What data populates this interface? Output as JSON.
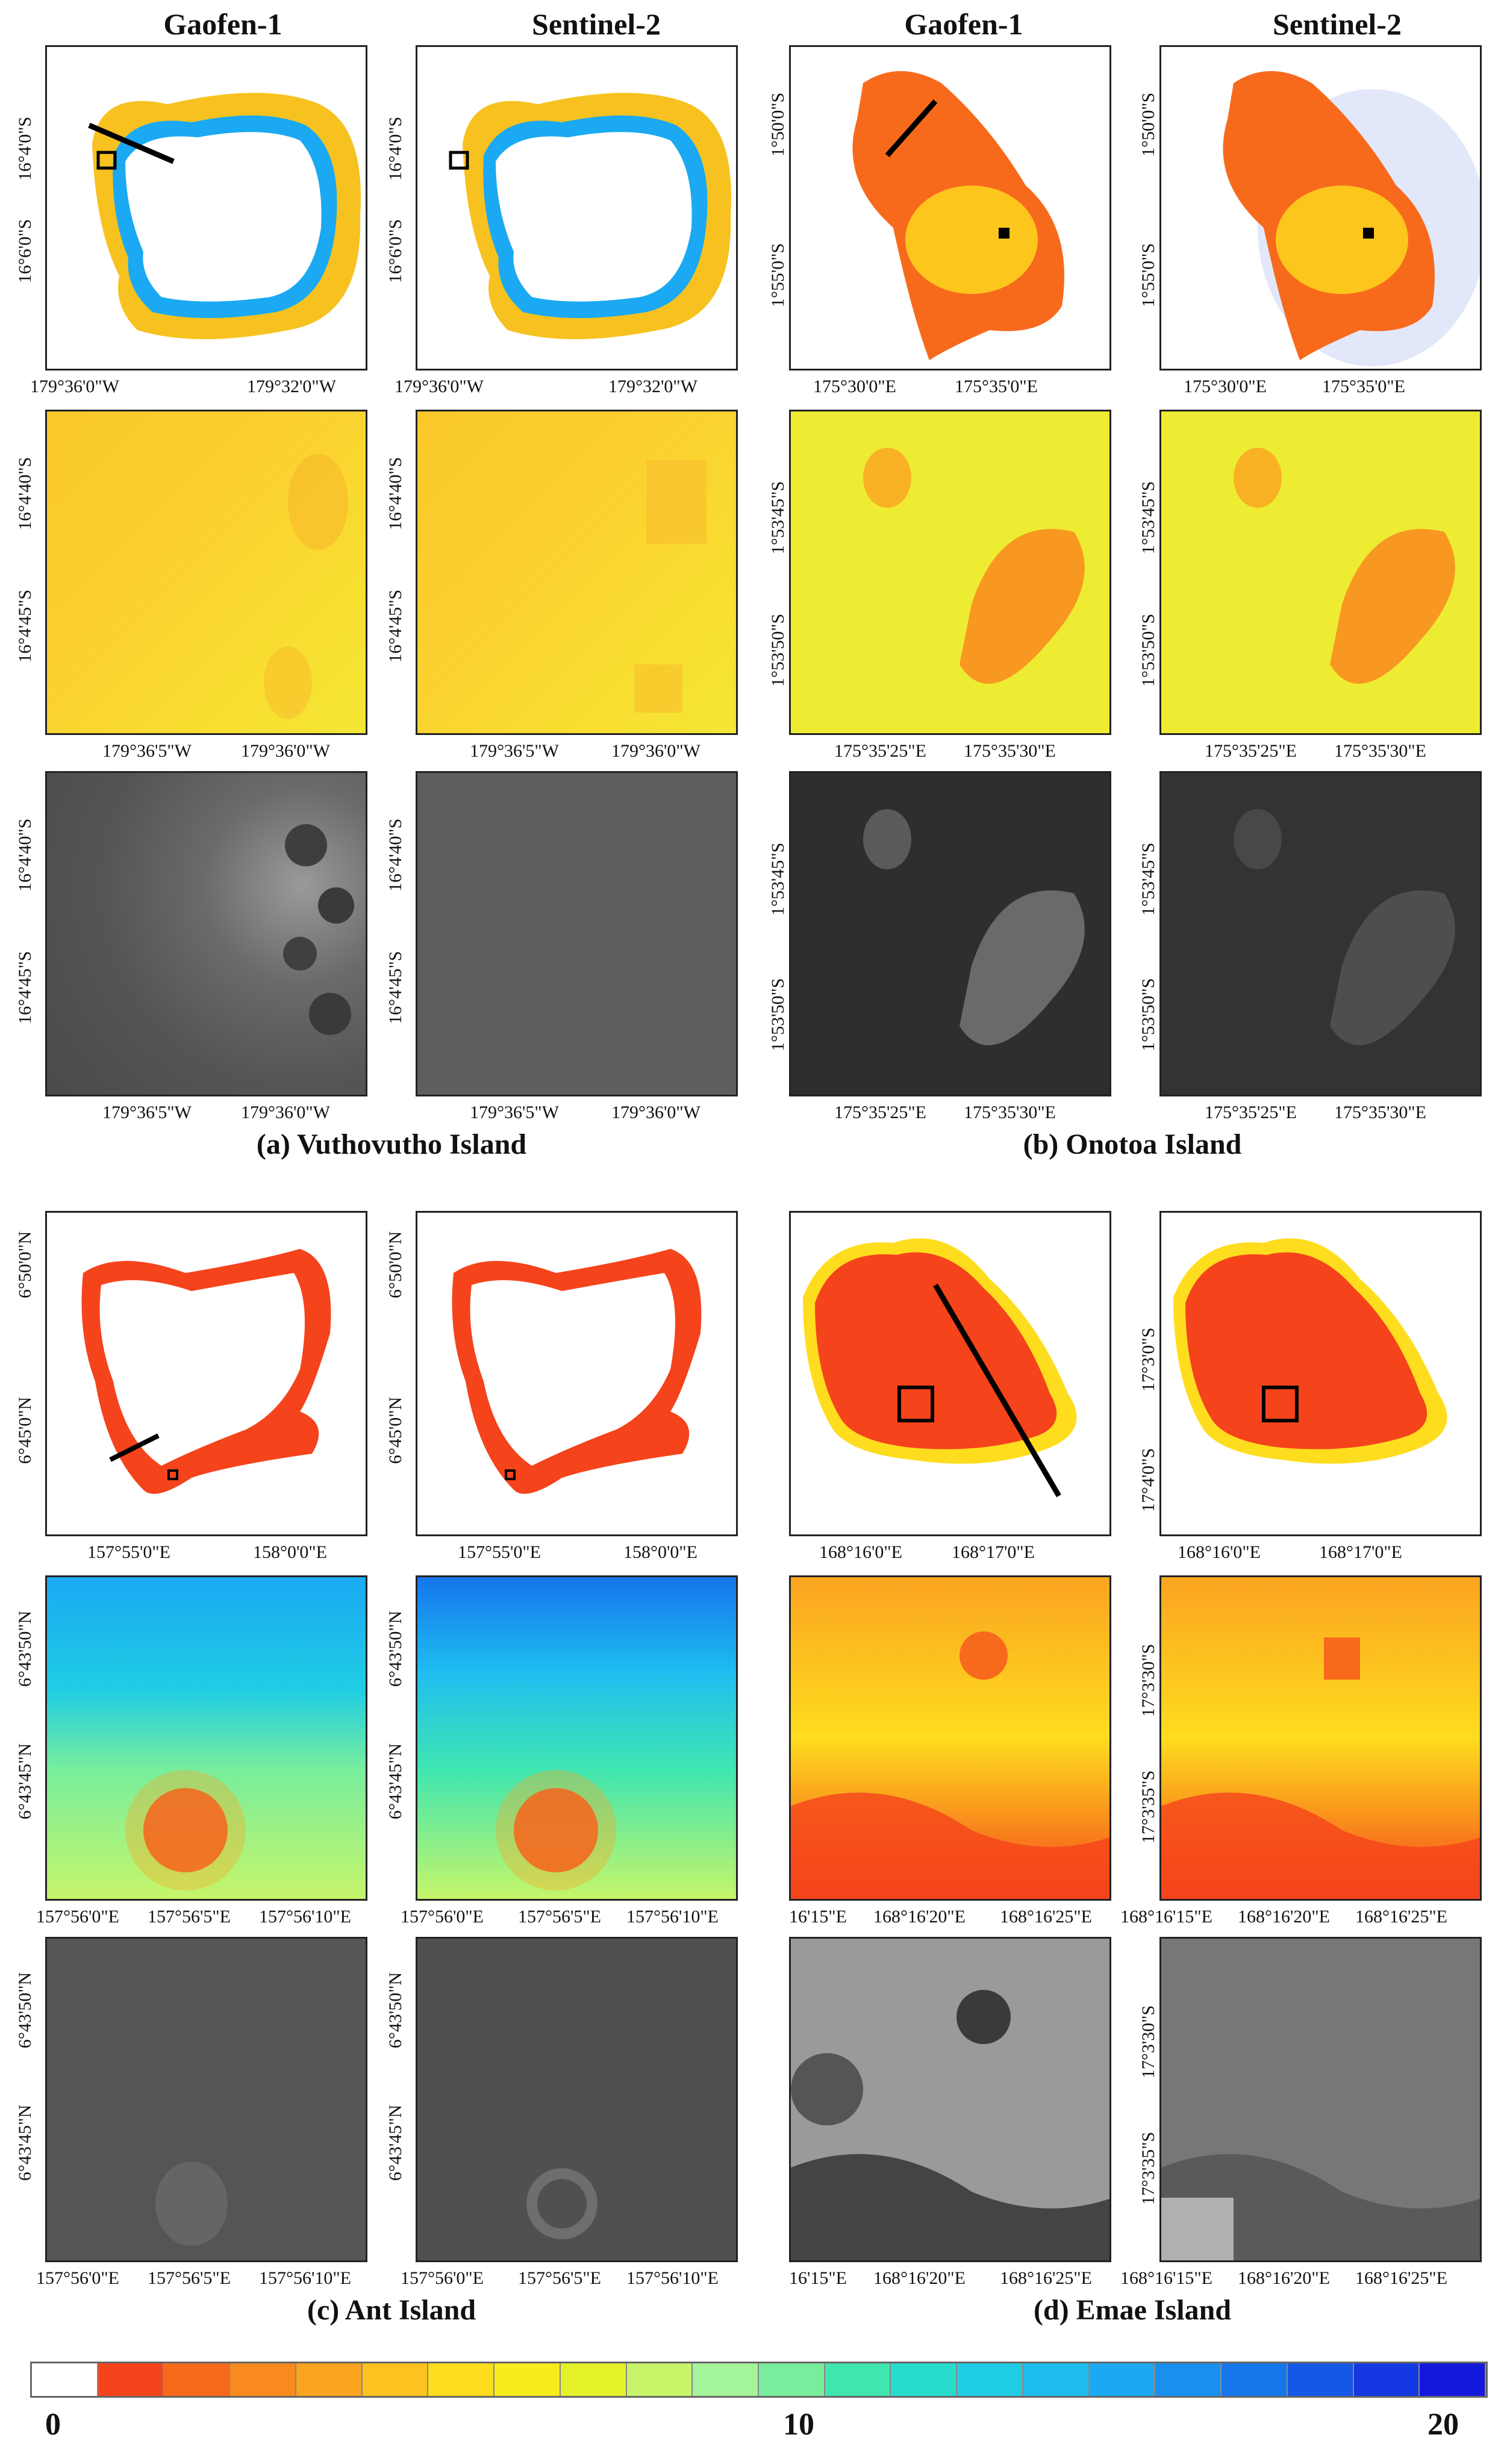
{
  "column_headers": [
    "Gaofen-1",
    "Sentinel-2",
    "Gaofen-1",
    "Sentinel-2"
  ],
  "captions": {
    "a": "(a) Vuthovutho Island",
    "b": "(b) Onotoa Island",
    "c": "(c) Ant Island",
    "d": "(d) Emae Island"
  },
  "labels": {
    "a_overview": {
      "x": [
        "179°36'0\"W",
        "179°32'0\"W"
      ],
      "y": [
        "16°4'0\"S",
        "16°6'0\"S"
      ]
    },
    "a_zoom": {
      "x": [
        "179°36'5\"W",
        "179°36'0\"W"
      ],
      "y": [
        "16°4'40\"S",
        "16°4'45\"S"
      ]
    },
    "b_overview": {
      "x": [
        "175°30'0\"E",
        "175°35'0\"E"
      ],
      "y": [
        "1°50'0\"S",
        "1°55'0\"S"
      ]
    },
    "b_zoom": {
      "x": [
        "175°35'25\"E",
        "175°35'30\"E"
      ],
      "y": [
        "1°53'45\"S",
        "1°53'50\"S"
      ]
    },
    "c_overview": {
      "x": [
        "157°55'0\"E",
        "158°0'0\"E"
      ],
      "y": [
        "6°50'0\"N",
        "6°45'0\"N"
      ]
    },
    "c_zoom": {
      "x": [
        "157°56'0\"E",
        "157°56'5\"E",
        "157°56'10\"E"
      ],
      "y": [
        "6°43'50\"N",
        "6°43'45\"N"
      ]
    },
    "d_overview": {
      "x": [
        "168°16'0\"E",
        "168°17'0\"E"
      ],
      "y": [
        "17°3'0\"S",
        "17°4'0\"S"
      ]
    },
    "d_zoom_gf": {
      "x": [
        "16'15\"E",
        "168°16'20\"E",
        "168°16'25\"E"
      ]
    },
    "d_zoom_s2": {
      "x": [
        "168°16'15\"E",
        "168°16'20\"E",
        "168°16'25\"E"
      ],
      "y": [
        "17°3'30\"S",
        "17°3'35\"S"
      ]
    }
  },
  "colorbar": {
    "tick_labels": [
      "0",
      "10",
      "20"
    ],
    "colors": [
      "#ffffff",
      "#f5431b",
      "#f76a1c",
      "#f98a1f",
      "#fba420",
      "#fdc21f",
      "#fedd1e",
      "#f7ec1e",
      "#e5f22a",
      "#c6f56a",
      "#a4f49a",
      "#78ee9c",
      "#40e6b0",
      "#26dccd",
      "#1fcde4",
      "#1fbef0",
      "#1aa9f2",
      "#1790f0",
      "#1576ec",
      "#1558e8",
      "#1438e2",
      "#1417dc"
    ]
  }
}
